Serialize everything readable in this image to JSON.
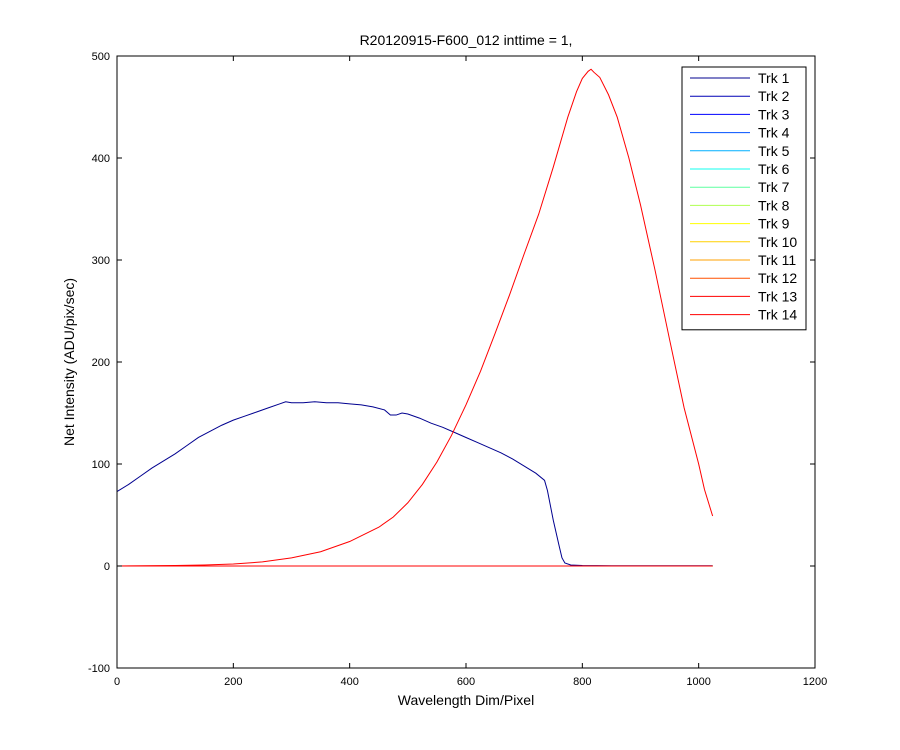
{
  "chart_data": {
    "type": "line",
    "title": "R20120915-F600_012 inttime = 1,",
    "xlabel": "Wavelength Dim/Pixel",
    "ylabel": "Net Intensity (ADU/pix/sec)",
    "xlim": [
      0,
      1200
    ],
    "ylim": [
      -100,
      500
    ],
    "xticks": [
      0,
      200,
      400,
      600,
      800,
      1000,
      1200
    ],
    "yticks": [
      -100,
      0,
      100,
      200,
      300,
      400,
      500
    ],
    "grid": false,
    "legend_position": "top-right",
    "series": [
      {
        "name": "Trk 1",
        "color": "#00008f",
        "points": [
          [
            0,
            73
          ],
          [
            20,
            80
          ],
          [
            40,
            88
          ],
          [
            60,
            96
          ],
          [
            80,
            103
          ],
          [
            100,
            110
          ],
          [
            120,
            118
          ],
          [
            140,
            126
          ],
          [
            160,
            132
          ],
          [
            180,
            138
          ],
          [
            200,
            143
          ],
          [
            220,
            147
          ],
          [
            240,
            151
          ],
          [
            260,
            155
          ],
          [
            280,
            159
          ],
          [
            290,
            161
          ],
          [
            300,
            160
          ],
          [
            320,
            160
          ],
          [
            340,
            161
          ],
          [
            360,
            160
          ],
          [
            380,
            160
          ],
          [
            400,
            159
          ],
          [
            420,
            158
          ],
          [
            440,
            156
          ],
          [
            460,
            153
          ],
          [
            470,
            148
          ],
          [
            480,
            148
          ],
          [
            490,
            150
          ],
          [
            500,
            149
          ],
          [
            520,
            145
          ],
          [
            540,
            140
          ],
          [
            560,
            136
          ],
          [
            580,
            131
          ],
          [
            600,
            126
          ],
          [
            620,
            121
          ],
          [
            640,
            116
          ],
          [
            660,
            111
          ],
          [
            680,
            105
          ],
          [
            700,
            98
          ],
          [
            720,
            91
          ],
          [
            735,
            84
          ],
          [
            740,
            74
          ],
          [
            750,
            45
          ],
          [
            760,
            20
          ],
          [
            765,
            8
          ],
          [
            770,
            3
          ],
          [
            780,
            1
          ],
          [
            800,
            0.5
          ],
          [
            850,
            0.3
          ],
          [
            900,
            0.2
          ],
          [
            950,
            0.2
          ],
          [
            1024,
            0.2
          ]
        ]
      },
      {
        "name": "Trk 2",
        "color": "#0000b6",
        "points": [
          [
            0,
            0
          ],
          [
            1024,
            0
          ]
        ]
      },
      {
        "name": "Trk 3",
        "color": "#0000ff",
        "points": [
          [
            0,
            0
          ],
          [
            1024,
            0
          ]
        ]
      },
      {
        "name": "Trk 4",
        "color": "#0050ff",
        "points": [
          [
            0,
            0
          ],
          [
            1024,
            0
          ]
        ]
      },
      {
        "name": "Trk 5",
        "color": "#00afff",
        "points": [
          [
            0,
            0
          ],
          [
            1024,
            0
          ]
        ]
      },
      {
        "name": "Trk 6",
        "color": "#10ffef",
        "points": [
          [
            0,
            0
          ],
          [
            1024,
            0
          ]
        ]
      },
      {
        "name": "Trk 7",
        "color": "#5fffa0",
        "points": [
          [
            0,
            0
          ],
          [
            1024,
            0
          ]
        ]
      },
      {
        "name": "Trk 8",
        "color": "#afff50",
        "points": [
          [
            0,
            0
          ],
          [
            1024,
            0
          ]
        ]
      },
      {
        "name": "Trk 9",
        "color": "#ffff00",
        "points": [
          [
            0,
            0
          ],
          [
            1024,
            0
          ]
        ]
      },
      {
        "name": "Trk 10",
        "color": "#ffd000",
        "points": [
          [
            0,
            0
          ],
          [
            1024,
            0
          ]
        ]
      },
      {
        "name": "Trk 11",
        "color": "#ffa000",
        "points": [
          [
            0,
            0
          ],
          [
            1024,
            0
          ]
        ]
      },
      {
        "name": "Trk 12",
        "color": "#ff5000",
        "points": [
          [
            0,
            0
          ],
          [
            1024,
            0
          ]
        ]
      },
      {
        "name": "Trk 13",
        "color": "#ff0000",
        "points": [
          [
            0,
            0
          ],
          [
            1024,
            0
          ]
        ]
      },
      {
        "name": "Trk 14",
        "color": "#ff0000",
        "points": [
          [
            0,
            0
          ],
          [
            100,
            0.5
          ],
          [
            150,
            1
          ],
          [
            200,
            2
          ],
          [
            250,
            4
          ],
          [
            300,
            8
          ],
          [
            350,
            14
          ],
          [
            400,
            24
          ],
          [
            450,
            38
          ],
          [
            475,
            48
          ],
          [
            500,
            62
          ],
          [
            525,
            80
          ],
          [
            550,
            102
          ],
          [
            575,
            128
          ],
          [
            600,
            158
          ],
          [
            625,
            191
          ],
          [
            650,
            228
          ],
          [
            675,
            266
          ],
          [
            700,
            306
          ],
          [
            725,
            345
          ],
          [
            750,
            391
          ],
          [
            775,
            440
          ],
          [
            790,
            465
          ],
          [
            800,
            478
          ],
          [
            810,
            485
          ],
          [
            815,
            487
          ],
          [
            820,
            484
          ],
          [
            830,
            479
          ],
          [
            845,
            462
          ],
          [
            860,
            440
          ],
          [
            880,
            400
          ],
          [
            900,
            354
          ],
          [
            925,
            290
          ],
          [
            950,
            222
          ],
          [
            975,
            155
          ],
          [
            1000,
            100
          ],
          [
            1010,
            75
          ],
          [
            1024,
            49
          ]
        ]
      }
    ]
  }
}
